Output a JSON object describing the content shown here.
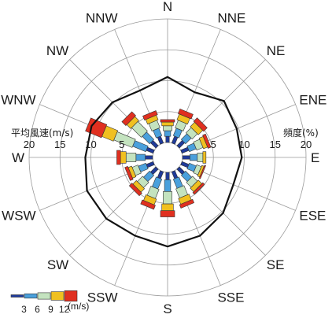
{
  "chart_data": {
    "type": "wind-rose",
    "directions": [
      "N",
      "NNE",
      "NE",
      "ENE",
      "E",
      "ESE",
      "SE",
      "SSE",
      "S",
      "SSW",
      "SW",
      "WSW",
      "W",
      "WNW",
      "NW",
      "NNW"
    ],
    "left_axis": {
      "title": "平均風速(m/s)",
      "ticks": [
        5,
        10,
        15,
        20
      ],
      "tick_labels": [
        "5",
        "10",
        "15",
        "20"
      ]
    },
    "right_axis": {
      "title": "頻度(%)",
      "ticks": [
        5,
        10,
        15,
        20
      ],
      "tick_labels": [
        "5",
        "10",
        "15",
        "20"
      ]
    },
    "rlim": [
      0,
      20
    ],
    "speed_classes": [
      {
        "upper": 3,
        "color": "#1f3a99"
      },
      {
        "upper": 6,
        "color": "#4aa0dc"
      },
      {
        "upper": 9,
        "color": "#c4e3bf"
      },
      {
        "upper": 12,
        "color": "#f0c020"
      },
      {
        "upper": null,
        "color": "#e03020"
      }
    ],
    "frequency_pct": [
      [
        1.0,
        0.9,
        0.8,
        0.6,
        0.4
      ],
      [
        1.2,
        1.3,
        1.3,
        1.0,
        0.8
      ],
      [
        1.2,
        1.3,
        1.2,
        1.0,
        0.8
      ],
      [
        1.2,
        1.2,
        1.1,
        0.7,
        0.5
      ],
      [
        1.2,
        1.2,
        0.9,
        0.5,
        0.0
      ],
      [
        1.2,
        1.2,
        0.8,
        0.4,
        0.2
      ],
      [
        1.2,
        1.4,
        1.1,
        0.8,
        0.4
      ],
      [
        1.2,
        1.6,
        1.6,
        1.0,
        0.6
      ],
      [
        1.2,
        1.9,
        2.0,
        1.1,
        1.0
      ],
      [
        1.2,
        1.7,
        1.6,
        1.0,
        0.7
      ],
      [
        1.2,
        1.4,
        1.2,
        0.8,
        0.6
      ],
      [
        1.2,
        1.3,
        1.0,
        0.6,
        0.5
      ],
      [
        1.2,
        1.5,
        1.6,
        0.9,
        0.6
      ],
      [
        1.2,
        2.3,
        3.2,
        2.0,
        2.8
      ],
      [
        1.2,
        1.7,
        2.2,
        0.9,
        0.9
      ],
      [
        1.2,
        1.3,
        1.3,
        0.8,
        0.7
      ]
    ],
    "mean_speed_ms": [
      10.6,
      9.0,
      10.5,
      9.7,
      9.6,
      9.1,
      10.3,
      11.3,
      12.0,
      11.3,
      11.6,
      11.7,
      10.9,
      10.9,
      10.2,
      9.3
    ],
    "legend": {
      "labels": [
        "3",
        "6",
        "9",
        "12"
      ],
      "unit": "(m/s)"
    }
  }
}
